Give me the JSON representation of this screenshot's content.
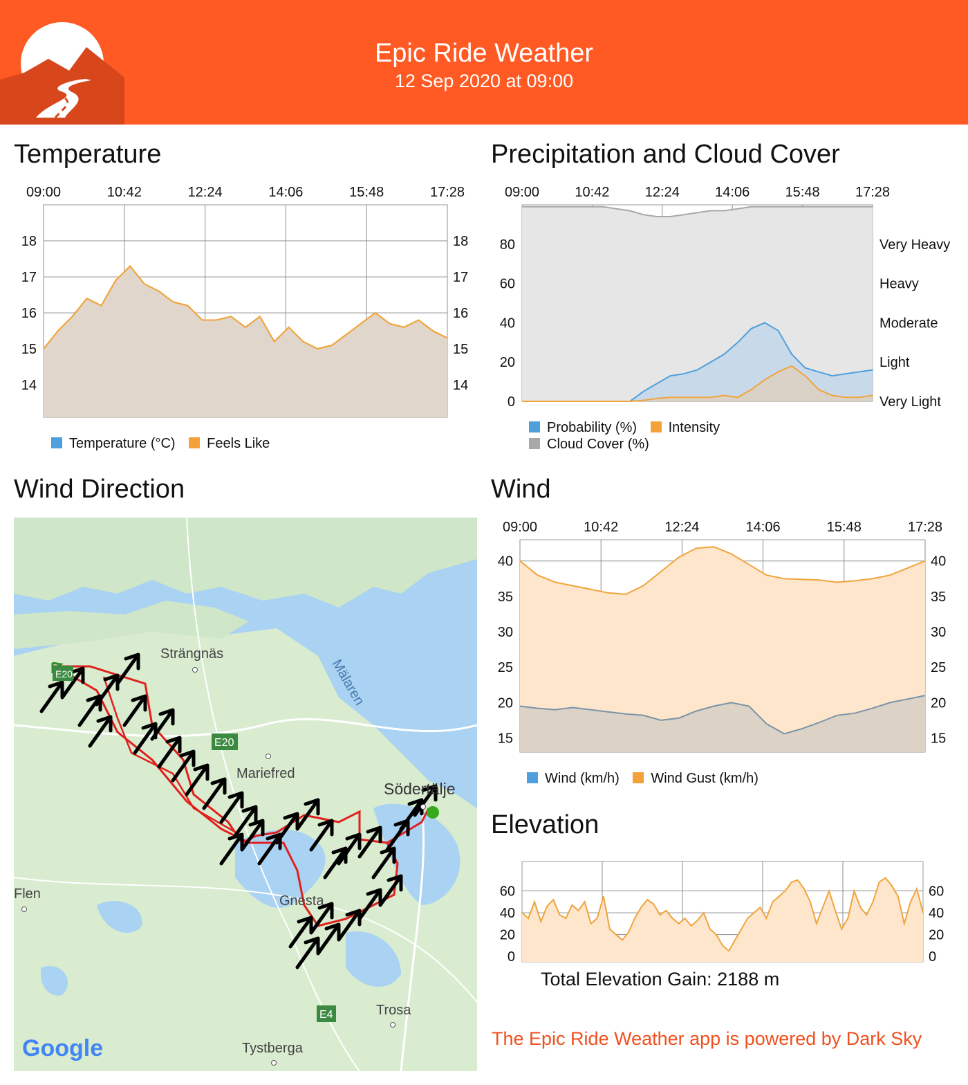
{
  "header": {
    "title": "Epic Ride Weather",
    "date": "12 Sep 2020 at 09:00",
    "logo_icon": "mountain-road-logo-icon",
    "colors": {
      "header_bg": "#ff5a24",
      "logo_dark": "#d8461c"
    }
  },
  "temperature": {
    "title": "Temperature",
    "chart_data": {
      "type": "area",
      "x_ticks": [
        "09:00",
        "10:42",
        "12:24",
        "14:06",
        "15:48",
        "17:28"
      ],
      "y_ticks": [
        14,
        15,
        16,
        17,
        18
      ],
      "ylim": [
        13.1,
        19.0
      ],
      "grid": true,
      "legend_position": "bottom",
      "series": [
        {
          "name": "Temperature (°C)",
          "color": "#4f9fdc",
          "values": [
            15.0,
            15.5,
            15.9,
            16.4,
            16.2,
            16.9,
            17.3,
            16.8,
            16.6,
            16.3,
            16.2,
            15.8,
            15.8,
            15.9,
            15.6,
            15.9,
            15.2,
            15.6,
            15.2,
            15.0,
            15.1,
            15.4,
            15.7,
            16.0,
            15.7,
            15.6,
            15.8,
            15.5,
            15.3
          ]
        },
        {
          "name": "Feels Like",
          "color": "#f3a23a",
          "values": [
            15.0,
            15.5,
            15.9,
            16.4,
            16.2,
            16.9,
            17.3,
            16.8,
            16.6,
            16.3,
            16.2,
            15.8,
            15.8,
            15.9,
            15.6,
            15.9,
            15.2,
            15.6,
            15.2,
            15.0,
            15.1,
            15.4,
            15.7,
            16.0,
            15.7,
            15.6,
            15.8,
            15.5,
            15.3
          ]
        }
      ]
    }
  },
  "precipitation": {
    "title": "Precipitation and Cloud Cover",
    "chart_data": {
      "type": "area",
      "x_ticks": [
        "09:00",
        "10:42",
        "12:24",
        "14:06",
        "15:48",
        "17:28"
      ],
      "y_ticks": [
        0,
        20,
        40,
        60,
        80
      ],
      "ylim": [
        0,
        100
      ],
      "right_labels": [
        "Very Light",
        "Light",
        "Moderate",
        "Heavy",
        "Very Heavy"
      ],
      "grid": true,
      "legend_position": "bottom",
      "series": [
        {
          "name": "Probability (%)",
          "color": "#4f9fdc",
          "values": [
            0,
            0,
            0,
            0,
            0,
            0,
            0,
            0,
            0,
            5,
            9,
            13,
            14,
            16,
            20,
            24,
            30,
            37,
            40,
            36,
            24,
            17,
            15,
            13,
            14,
            15,
            16
          ]
        },
        {
          "name": "Intensity",
          "color": "#f3a23a",
          "values": [
            0,
            0,
            0,
            0,
            0,
            0,
            0,
            0,
            0,
            0.5,
            1.5,
            2,
            2,
            2,
            2,
            3,
            2,
            6,
            11,
            15,
            18,
            13,
            6,
            3,
            2,
            2,
            3
          ]
        },
        {
          "name": "Cloud Cover (%)",
          "color": "#a8a8a8",
          "values": [
            99,
            99,
            99,
            99,
            99,
            99,
            99,
            98,
            97,
            95,
            94,
            94,
            95,
            96,
            97,
            97,
            98,
            99,
            99,
            99,
            99,
            99,
            99,
            99,
            99,
            99,
            99
          ]
        }
      ]
    }
  },
  "wind_direction": {
    "title": "Wind Direction",
    "map": {
      "labels": [
        "Strängnäs",
        "Mälaren",
        "E20",
        "Mariefred",
        "Södertälje",
        "Flen",
        "Gnesta",
        "Trosa",
        "E4",
        "Tystberga",
        "E20"
      ],
      "brand": "Google"
    }
  },
  "wind": {
    "title": "Wind",
    "chart_data": {
      "type": "area",
      "x_ticks": [
        "09:00",
        "10:42",
        "12:24",
        "14:06",
        "15:48",
        "17:28"
      ],
      "y_ticks": [
        15,
        20,
        25,
        30,
        35,
        40
      ],
      "ylim": [
        13,
        43
      ],
      "grid": true,
      "legend_position": "bottom",
      "series": [
        {
          "name": "Wind (km/h)",
          "color": "#4f9fdc",
          "values": [
            19.5,
            19.2,
            19.0,
            19.3,
            19.0,
            18.7,
            18.4,
            18.2,
            17.5,
            17.8,
            18.8,
            19.5,
            20.0,
            19.5,
            17.0,
            15.6,
            16.3,
            17.2,
            18.2,
            18.5,
            19.2,
            20.0,
            20.5,
            21.0
          ]
        },
        {
          "name": "Wind Gust (km/h)",
          "color": "#f3a23a",
          "values": [
            40.0,
            38.0,
            37.0,
            36.5,
            36.0,
            35.5,
            35.3,
            36.5,
            38.5,
            40.5,
            41.8,
            42.0,
            41.0,
            39.5,
            38.0,
            37.5,
            37.4,
            37.3,
            37.0,
            37.2,
            37.5,
            38.0,
            39.0,
            40.0
          ]
        }
      ]
    }
  },
  "elevation": {
    "title": "Elevation",
    "chart_data": {
      "type": "area",
      "y_ticks": [
        0,
        20,
        40,
        60
      ],
      "ylim": [
        -5,
        87
      ],
      "grid": true,
      "series": [
        {
          "name": "Elevation",
          "color": "#f3a23a",
          "values": [
            40,
            35,
            50,
            32,
            46,
            52,
            38,
            35,
            47,
            42,
            50,
            30,
            35,
            55,
            25,
            20,
            15,
            22,
            35,
            45,
            52,
            48,
            38,
            42,
            35,
            30,
            35,
            28,
            33,
            40,
            25,
            20,
            10,
            5,
            15,
            25,
            35,
            40,
            45,
            35,
            50,
            55,
            60,
            68,
            70,
            62,
            50,
            30,
            45,
            60,
            42,
            25,
            35,
            60,
            45,
            38,
            50,
            68,
            72,
            65,
            55,
            30,
            50,
            62,
            40
          ]
        }
      ]
    },
    "total_gain": "Total Elevation Gain: 2188 m"
  },
  "footer": {
    "powered_by": "The Epic Ride Weather app is powered by Dark Sky"
  }
}
